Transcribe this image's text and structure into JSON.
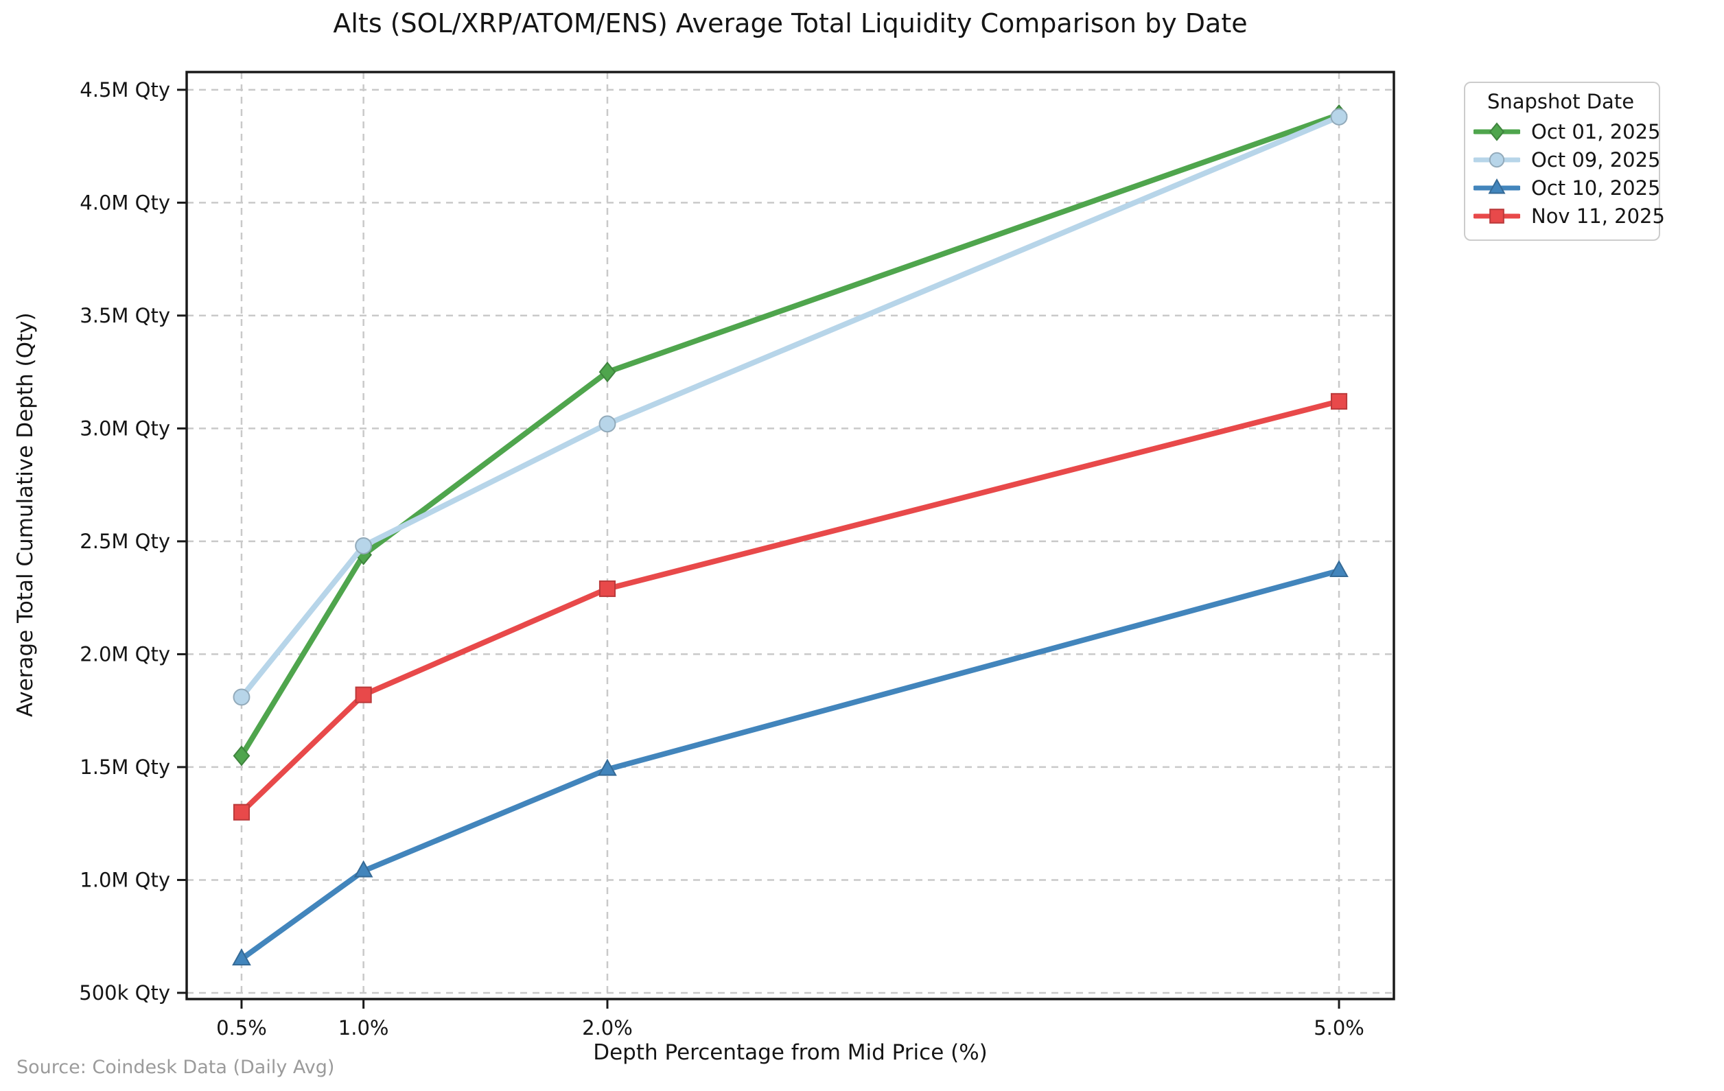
{
  "chart_data": {
    "type": "line",
    "title": "Alts (SOL/XRP/ATOM/ENS) Average Total Liquidity Comparison by Date",
    "xlabel": "Depth Percentage from Mid Price (%)",
    "ylabel": "Average Total Cumulative Depth (Qty)",
    "legend_title": "Snapshot Date",
    "legend_position": "outside-right",
    "source": "Source: Coindesk Data (Daily Avg)",
    "grid": true,
    "x": [
      0.5,
      1.0,
      2.0,
      5.0
    ],
    "x_tick_labels": [
      "0.5%",
      "1.0%",
      "2.0%",
      "5.0%"
    ],
    "xlim": [
      0.275,
      5.225
    ],
    "y_ticks": [
      500000,
      1000000,
      1500000,
      2000000,
      2500000,
      3000000,
      3500000,
      4000000,
      4500000
    ],
    "y_tick_labels": [
      "500k Qty",
      "1.0M Qty",
      "1.5M Qty",
      "2.0M Qty",
      "2.5M Qty",
      "3.0M Qty",
      "3.5M Qty",
      "4.0M Qty",
      "4.5M Qty"
    ],
    "ylim": [
      472500,
      4578600
    ],
    "series": [
      {
        "name": "Oct 01, 2025",
        "color": "#4fa54d",
        "marker": "diamond",
        "values": [
          1550000,
          2440000,
          3250000,
          4390000
        ]
      },
      {
        "name": "Oct 09, 2025",
        "color": "#b7d5e9",
        "marker": "circle",
        "values": [
          1810000,
          2480000,
          3020000,
          4380000
        ]
      },
      {
        "name": "Oct 10, 2025",
        "color": "#4285bc",
        "marker": "triangle",
        "values": [
          650000,
          1040000,
          1490000,
          2370000
        ]
      },
      {
        "name": "Nov 11, 2025",
        "color": "#e8494a",
        "marker": "square",
        "values": [
          1300000,
          1820000,
          2290000,
          3120000
        ]
      }
    ]
  }
}
